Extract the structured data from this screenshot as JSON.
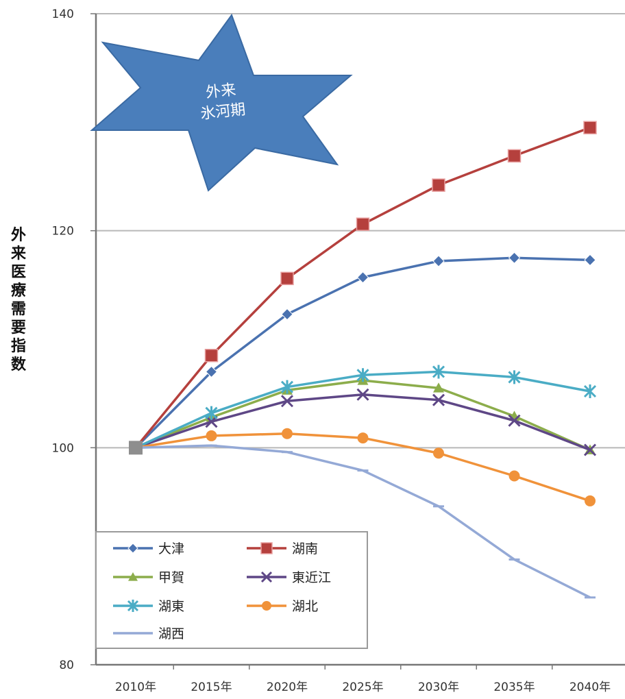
{
  "chart_data": {
    "type": "line",
    "title": "",
    "xlabel": "",
    "ylabel": "外来医療需要指数",
    "x": [
      "2010年",
      "2015年",
      "2020年",
      "2025年",
      "2030年",
      "2035年",
      "2040年"
    ],
    "ylim": [
      80,
      140
    ],
    "yticks": [
      "80",
      "100",
      "120",
      "140"
    ],
    "grid": "horizontal",
    "legend_position": "bottom-left",
    "annotation": {
      "line1": "外来",
      "line2": "氷河期",
      "shape": "six-point-star",
      "color": "#4a7ebb"
    },
    "series": [
      {
        "name": "大津",
        "color": "#4a72b0",
        "marker": "diamond",
        "values": [
          100,
          107,
          112.3,
          115.7,
          117.2,
          117.5,
          117.3
        ]
      },
      {
        "name": "湖南",
        "color": "#b5403d",
        "marker": "square",
        "values": [
          100,
          108.5,
          115.6,
          120.6,
          124.2,
          126.9,
          129.5
        ]
      },
      {
        "name": "甲賀",
        "color": "#8cad4b",
        "marker": "triangle",
        "values": [
          100,
          102.8,
          105.3,
          106.2,
          105.5,
          102.9,
          99.8
        ]
      },
      {
        "name": "東近江",
        "color": "#5e4786",
        "marker": "x",
        "values": [
          100,
          102.4,
          104.3,
          104.9,
          104.4,
          102.5,
          99.8
        ]
      },
      {
        "name": "湖東",
        "color": "#4aacc5",
        "marker": "star",
        "values": [
          100,
          103.2,
          105.6,
          106.7,
          107.0,
          106.5,
          105.2
        ]
      },
      {
        "name": "湖北",
        "color": "#f0923a",
        "marker": "circle",
        "values": [
          100,
          101.1,
          101.3,
          100.9,
          99.5,
          97.4,
          95.1
        ]
      },
      {
        "name": "湖西",
        "color": "#94a9d6",
        "marker": "dash",
        "values": [
          100,
          100.2,
          99.6,
          97.9,
          94.6,
          89.7,
          86.2
        ]
      }
    ]
  }
}
